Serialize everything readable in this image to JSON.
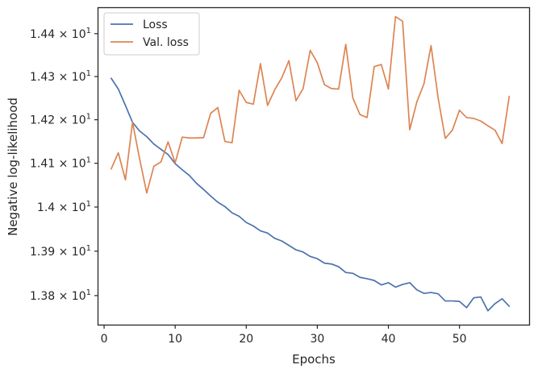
{
  "chart_data": {
    "type": "line",
    "xlabel": "Epochs",
    "ylabel": "Negative log-likelihood",
    "xlim": [
      -0.8,
      59.8
    ],
    "ylim": [
      13.735,
      14.46
    ],
    "x_ticks": [
      0,
      10,
      20,
      30,
      40,
      50
    ],
    "x_tick_labels": [
      "0",
      "10",
      "20",
      "30",
      "40",
      "50"
    ],
    "y_ticks": [
      13.8,
      13.9,
      14.0,
      14.1,
      14.2,
      14.3,
      14.4
    ],
    "y_tick_labels": [
      {
        "mantissa": "1.38",
        "exponent": "1"
      },
      {
        "mantissa": "1.39",
        "exponent": "1"
      },
      {
        "mantissa": "1.4",
        "exponent": "1"
      },
      {
        "mantissa": "1.41",
        "exponent": "1"
      },
      {
        "mantissa": "1.42",
        "exponent": "1"
      },
      {
        "mantissa": "1.43",
        "exponent": "1"
      },
      {
        "mantissa": "1.44",
        "exponent": "1"
      }
    ],
    "y_scale": "log",
    "grid": false,
    "legend_position": "top-left",
    "x": [
      1,
      2,
      3,
      4,
      5,
      6,
      7,
      8,
      9,
      10,
      11,
      12,
      13,
      14,
      15,
      16,
      17,
      18,
      19,
      20,
      21,
      22,
      23,
      24,
      25,
      26,
      27,
      28,
      29,
      30,
      31,
      32,
      33,
      34,
      35,
      36,
      37,
      38,
      39,
      40,
      41,
      42,
      43,
      44,
      45,
      46,
      47,
      48,
      49,
      50,
      51,
      52,
      53,
      54,
      55,
      56,
      57
    ],
    "series": [
      {
        "name": "Loss",
        "color": "#4c72b0",
        "values": [
          14.296,
          14.271,
          14.233,
          14.194,
          14.174,
          14.161,
          14.144,
          14.132,
          14.12,
          14.099,
          14.085,
          14.072,
          14.054,
          14.04,
          14.025,
          14.011,
          14.001,
          13.987,
          13.979,
          13.965,
          13.957,
          13.946,
          13.941,
          13.929,
          13.923,
          13.913,
          13.903,
          13.898,
          13.888,
          13.883,
          13.873,
          13.871,
          13.865,
          13.852,
          13.85,
          13.841,
          13.838,
          13.834,
          13.824,
          13.829,
          13.819,
          13.825,
          13.829,
          13.813,
          13.805,
          13.807,
          13.804,
          13.788,
          13.788,
          13.787,
          13.773,
          13.795,
          13.797,
          13.766,
          13.782,
          13.793,
          13.776
        ]
      },
      {
        "name": "Val. loss",
        "color": "#dd8452",
        "values": [
          14.087,
          14.124,
          14.062,
          14.194,
          14.11,
          14.032,
          14.093,
          14.103,
          14.149,
          14.101,
          14.16,
          14.158,
          14.158,
          14.159,
          14.215,
          14.228,
          14.15,
          14.147,
          14.268,
          14.24,
          14.236,
          14.33,
          14.233,
          14.269,
          14.297,
          14.337,
          14.244,
          14.272,
          14.361,
          14.332,
          14.281,
          14.272,
          14.271,
          14.375,
          14.25,
          14.212,
          14.205,
          14.323,
          14.328,
          14.271,
          14.44,
          14.429,
          14.177,
          14.241,
          14.283,
          14.372,
          14.25,
          14.157,
          14.176,
          14.222,
          14.205,
          14.203,
          14.197,
          14.186,
          14.176,
          14.145,
          14.254
        ]
      }
    ]
  }
}
